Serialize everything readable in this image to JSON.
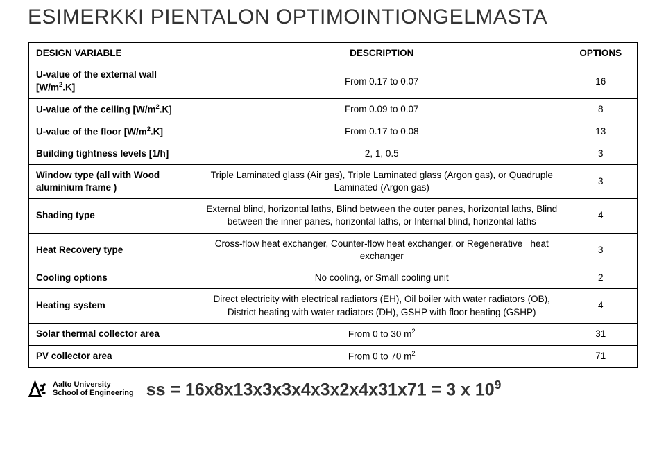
{
  "title": "ESIMERKKI PIENTALON OPTIMOINTIONGELMASTA",
  "headers": {
    "col1": "DESIGN VARIABLE",
    "col2": "DESCRIPTION",
    "col3": "OPTIONS"
  },
  "rows": [
    {
      "var_html": "U-value of the external wall [W/m<sup>2</sup>.K]",
      "desc_html": "From 0.17 to 0.07",
      "opt": "16"
    },
    {
      "var_html": "U-value of the ceiling [W/m<sup>2</sup>.K]",
      "desc_html": "From 0.09 to 0.07",
      "opt": "8"
    },
    {
      "var_html": "U-value of the floor [W/m<sup>2</sup>.K]",
      "desc_html": "From 0.17 to 0.08",
      "opt": "13"
    },
    {
      "var_html": "Building tightness levels [1/h]",
      "desc_html": "2, 1, 0.5",
      "opt": "3"
    },
    {
      "var_html": "Window type (all with Wood aluminium frame )",
      "desc_html": "Triple Laminated glass (Air gas), Triple Laminated glass (Argon gas), or Quadruple Laminated (Argon gas)",
      "opt": "3"
    },
    {
      "var_html": "Shading type",
      "desc_html": "External blind, horizontal laths, Blind between the outer panes, horizontal laths, Blind between the inner panes, horizontal laths, or Internal blind, horizontal laths",
      "opt": "4"
    },
    {
      "var_html": "Heat Recovery type",
      "desc_html": "Cross-flow heat exchanger, Counter-flow heat exchanger, or Regenerative&nbsp;&nbsp;&nbsp;heat exchanger",
      "opt": "3"
    },
    {
      "var_html": "Cooling options",
      "desc_html": "No cooling, or Small cooling unit",
      "opt": "2"
    },
    {
      "var_html": "Heating system",
      "desc_html": "Direct electricity with electrical radiators (EH), Oil boiler with water radiators (OB), District heating with water radiators (DH), GSHP with floor heating (GSHP)",
      "opt": "4"
    },
    {
      "var_html": "Solar thermal collector area",
      "desc_html": "From 0 to 30 m<sup>2</sup>",
      "opt": "31"
    },
    {
      "var_html": "PV collector area",
      "desc_html": "From 0 to 70 m<sup>2</sup>",
      "opt": "71"
    }
  ],
  "logo": {
    "line1": "Aalto University",
    "line2": "School of Engineering"
  },
  "equation_html": "ss = 16x8x13x3x3x4x3x2x4x31x71 = 3 x 10<sup>9</sup>",
  "colors": {
    "text": "#333333",
    "border": "#000000",
    "background": "#ffffff"
  }
}
